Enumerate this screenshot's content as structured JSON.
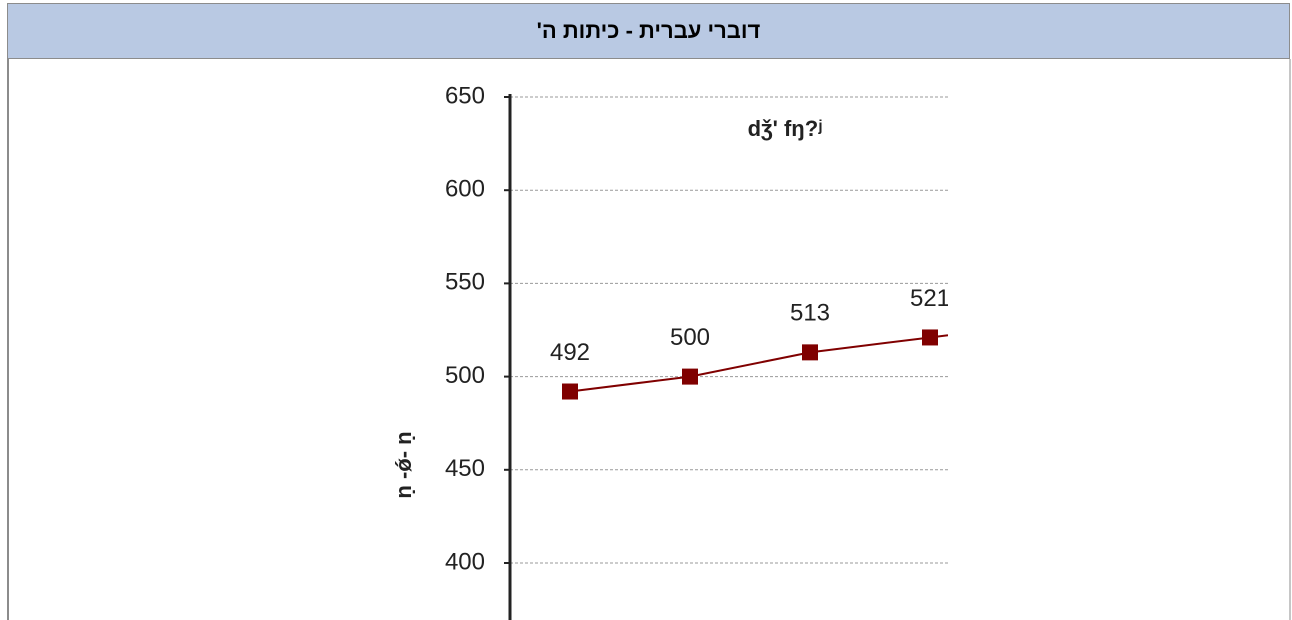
{
  "header": {
    "title": "דוברי עברית - כיתות ה'"
  },
  "chart_data": {
    "type": "line",
    "annotation": "dǯ' fŋ?ʲ",
    "y_label": "ṇ -ǿ- ṇ",
    "categories": [
      null,
      null,
      null,
      null
    ],
    "series": [
      {
        "name": null,
        "color": "#800000",
        "values": [
          492,
          500,
          513,
          521
        ]
      }
    ],
    "ylim": [
      400,
      650
    ],
    "yticks": [
      400,
      450,
      500,
      550,
      600,
      650
    ],
    "grid": true
  }
}
